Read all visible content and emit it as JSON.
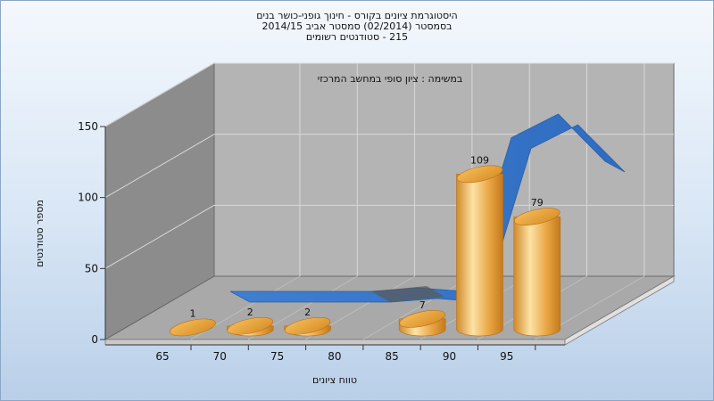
{
  "titles": [
    "היסטוגרמת ציונים בקורס - חינוך גופני-כושר בנים",
    "בסמסטר (02/2014) סמסטר אביב 2014/15",
    "215 - סטודנטים רשומים"
  ],
  "chart_data": {
    "type": "bar",
    "subtitle": "במשימה : ציון סופי במחשב המרכזי",
    "xlabel": "טווח ציונים",
    "ylabel": "מספר סטודנטים",
    "ylim": [
      0,
      150
    ],
    "y_ticks": [
      "0",
      "50",
      "100",
      "150"
    ],
    "categories": [
      "65",
      "70",
      "75",
      "80",
      "85",
      "90",
      "95"
    ],
    "values": [
      1,
      2,
      2,
      0,
      7,
      109,
      79
    ],
    "data_labels": [
      "1",
      "2",
      "2",
      "",
      "7",
      "109",
      "79"
    ],
    "trend_values": [
      0,
      0,
      0,
      0,
      3,
      0,
      130,
      150,
      110
    ],
    "grid": true,
    "colors": {
      "bar": "#e8a23c",
      "bar_light": "#fde2a6",
      "bar_dark": "#c47a1c",
      "ribbon": "#3f7fd0",
      "ribbon_dark": "#2a5fa8",
      "wall_left": "#8c8c8c",
      "wall_back": "#b4b4b4",
      "floor": "#a9a9a9"
    }
  }
}
